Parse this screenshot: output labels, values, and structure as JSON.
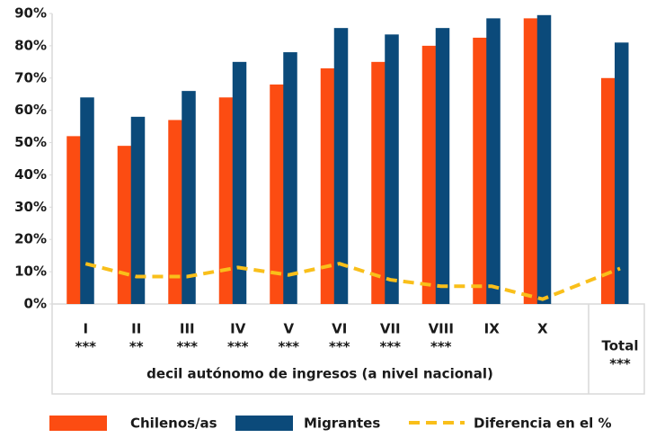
{
  "chart_data": {
    "type": "bar",
    "x_label": "decil autónomo de ingresos (a nivel nacional)",
    "categories": [
      "I",
      "II",
      "III",
      "IV",
      "V",
      "VI",
      "VII",
      "VIII",
      "IX",
      "X",
      "Total"
    ],
    "significance": [
      "***",
      "**",
      "***",
      "***",
      "***",
      "***",
      "***",
      "***",
      null,
      null,
      "***"
    ],
    "series": [
      {
        "name": "Chilenos/as",
        "color": "#fc4c12",
        "values": [
          52,
          49,
          57,
          64,
          68,
          73,
          75,
          80,
          82.5,
          88.5,
          70
        ]
      },
      {
        "name": "Migrantes",
        "color": "#0b4a7a",
        "values": [
          64,
          58,
          66,
          75,
          78,
          85.5,
          83.5,
          85.5,
          88.5,
          89.5,
          81
        ]
      },
      {
        "name": "Diferencia en el %",
        "type": "line",
        "dashed": true,
        "color": "#f9bf1a",
        "values": [
          12.5,
          8.5,
          8.5,
          11.3,
          9,
          12.5,
          7.5,
          5.5,
          5.5,
          1.5,
          11
        ]
      }
    ],
    "ylim": [
      0,
      90
    ],
    "yticks": [
      {
        "value": 0,
        "label": "0%"
      },
      {
        "value": 10,
        "label": "10%"
      },
      {
        "value": 20,
        "label": "20%"
      },
      {
        "value": 30,
        "label": "30%"
      },
      {
        "value": 40,
        "label": "40%"
      },
      {
        "value": 50,
        "label": "50%"
      },
      {
        "value": 60,
        "label": "60%"
      },
      {
        "value": 70,
        "label": "70%"
      },
      {
        "value": 80,
        "label": "80%"
      },
      {
        "value": 90,
        "label": "90%"
      }
    ],
    "grid": false
  }
}
